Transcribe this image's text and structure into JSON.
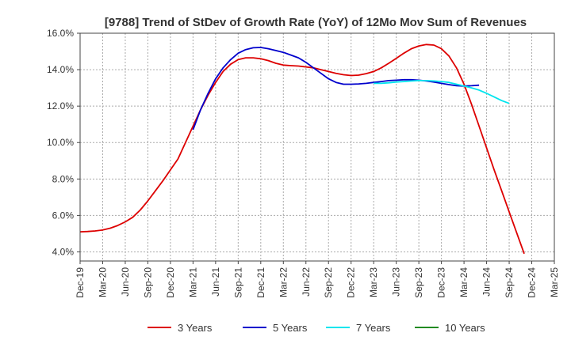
{
  "chart_data": {
    "type": "line",
    "title": "[9788]  Trend of StDev of Growth Rate (YoY) of 12Mo Mov Sum of Revenues",
    "xlabel": "",
    "ylabel": "",
    "ylim": [
      3.5,
      16.0
    ],
    "y_ticks": [
      4.0,
      6.0,
      8.0,
      10.0,
      12.0,
      14.0,
      16.0
    ],
    "y_tick_labels": [
      "4.0%",
      "6.0%",
      "8.0%",
      "10.0%",
      "12.0%",
      "14.0%",
      "16.0%"
    ],
    "x_ticks": [
      "Dec-19",
      "Mar-20",
      "Jun-20",
      "Sep-20",
      "Dec-20",
      "Mar-21",
      "Jun-21",
      "Sep-21",
      "Dec-21",
      "Mar-22",
      "Jun-22",
      "Sep-22",
      "Dec-22",
      "Mar-23",
      "Jun-23",
      "Sep-23",
      "Dec-23",
      "Mar-24",
      "Jun-24",
      "Sep-24",
      "Dec-24",
      "Mar-25"
    ],
    "grid": true,
    "legend_position": "bottom",
    "series": [
      {
        "name": "3 Years",
        "color": "#dd0000",
        "start_index": 0,
        "values": [
          5.1,
          5.12,
          5.15,
          5.2,
          5.3,
          5.45,
          5.65,
          5.9,
          6.3,
          6.8,
          7.35,
          7.9,
          8.5,
          9.1,
          10.0,
          10.9,
          11.8,
          12.6,
          13.3,
          13.9,
          14.3,
          14.55,
          14.65,
          14.65,
          14.6,
          14.5,
          14.35,
          14.25,
          14.22,
          14.2,
          14.15,
          14.1,
          14.0,
          13.9,
          13.8,
          13.72,
          13.68,
          13.7,
          13.78,
          13.9,
          14.1,
          14.35,
          14.62,
          14.9,
          15.15,
          15.3,
          15.38,
          15.35,
          15.15,
          14.75,
          14.1,
          13.2,
          12.1,
          10.9,
          9.7,
          8.5,
          7.35,
          6.2,
          5.05,
          3.9
        ]
      },
      {
        "name": "5 Years",
        "color": "#0000cc",
        "start_index": 15,
        "values": [
          10.7,
          11.8,
          12.7,
          13.5,
          14.1,
          14.55,
          14.9,
          15.1,
          15.2,
          15.22,
          15.15,
          15.05,
          14.95,
          14.8,
          14.65,
          14.4,
          14.1,
          13.8,
          13.5,
          13.3,
          13.2,
          13.2,
          13.22,
          13.25,
          13.3,
          13.35,
          13.4,
          13.42,
          13.45,
          13.45,
          13.42,
          13.38,
          13.32,
          13.25,
          13.18,
          13.12,
          13.1,
          13.12,
          13.15
        ]
      },
      {
        "name": "7 Years",
        "color": "#00e5ee",
        "start_index": 39,
        "values": [
          13.25,
          13.25,
          13.28,
          13.32,
          13.35,
          13.38,
          13.4,
          13.4,
          13.38,
          13.35,
          13.3,
          13.2,
          13.1,
          13.0,
          12.88,
          12.7,
          12.5,
          12.3,
          12.15
        ]
      },
      {
        "name": "10 Years",
        "color": "#228b22",
        "start_index": 0,
        "values": []
      }
    ]
  }
}
